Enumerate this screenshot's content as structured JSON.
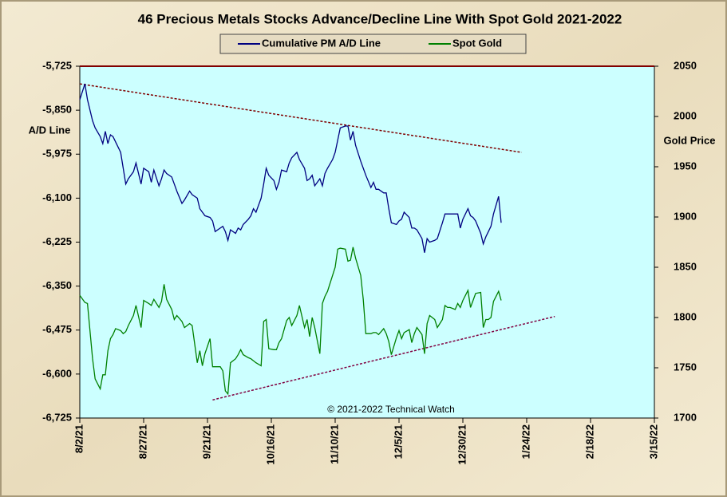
{
  "chart_data": {
    "type": "line",
    "title": "46 Precious Metals Stocks Advance/Decline Line With Spot Gold 2021-2022",
    "y_label": "A/D Line",
    "y2_label": "Gold Price",
    "annotation": "© 2021-2022 Technical Watch",
    "plot_background": "#ccffff",
    "x": [
      "2021-08-02",
      "2021-08-04",
      "2021-08-05",
      "2021-08-07",
      "2021-08-08",
      "2021-08-10",
      "2021-08-11",
      "2021-08-12",
      "2021-08-13",
      "2021-08-14",
      "2021-08-15",
      "2021-08-16",
      "2021-08-18",
      "2021-08-19",
      "2021-08-20",
      "2021-08-21",
      "2021-08-23",
      "2021-08-24",
      "2021-08-26",
      "2021-08-27",
      "2021-08-29",
      "2021-08-30",
      "2021-08-31",
      "2021-09-02",
      "2021-09-03",
      "2021-09-04",
      "2021-09-05",
      "2021-09-07",
      "2021-09-08",
      "2021-09-09",
      "2021-09-11",
      "2021-09-12",
      "2021-09-14",
      "2021-09-15",
      "2021-09-17",
      "2021-09-18",
      "2021-09-19",
      "2021-09-20",
      "2021-09-22",
      "2021-09-23",
      "2021-09-24",
      "2021-09-26",
      "2021-09-27",
      "2021-09-28",
      "2021-09-29",
      "2021-09-30",
      "2021-10-02",
      "2021-10-03",
      "2021-10-04",
      "2021-10-05",
      "2021-10-07",
      "2021-10-08",
      "2021-10-09",
      "2021-10-10",
      "2021-10-12",
      "2021-10-13",
      "2021-10-14",
      "2021-10-15",
      "2021-10-17",
      "2021-10-18",
      "2021-10-19",
      "2021-10-20",
      "2021-10-22",
      "2021-10-23",
      "2021-10-24",
      "2021-10-26",
      "2021-10-27",
      "2021-10-29",
      "2021-10-30",
      "2021-10-31",
      "2021-11-01",
      "2021-11-02",
      "2021-11-04",
      "2021-11-05",
      "2021-11-06",
      "2021-11-07",
      "2021-11-09",
      "2021-11-10",
      "2021-11-11",
      "2021-11-12",
      "2021-11-14",
      "2021-11-15",
      "2021-11-16",
      "2021-11-17",
      "2021-11-18",
      "2021-11-20",
      "2021-11-21",
      "2021-11-22",
      "2021-11-24",
      "2021-11-25",
      "2021-11-26",
      "2021-11-27",
      "2021-11-29",
      "2021-11-30",
      "2021-12-01",
      "2021-12-02",
      "2021-12-04",
      "2021-12-05",
      "2021-12-06",
      "2021-12-07",
      "2021-12-09",
      "2021-12-10",
      "2021-12-11",
      "2021-12-12",
      "2021-12-14",
      "2021-12-15",
      "2021-12-16",
      "2021-12-17",
      "2021-12-19",
      "2021-12-20",
      "2021-12-22",
      "2021-12-23",
      "2021-12-24",
      "2021-12-25",
      "2021-12-27",
      "2021-12-28",
      "2021-12-29",
      "2021-12-30",
      "2022-01-01",
      "2022-01-02",
      "2022-01-03",
      "2022-01-04",
      "2022-01-06",
      "2022-01-07",
      "2022-01-08",
      "2022-01-09",
      "2022-01-10",
      "2022-01-11",
      "2022-01-13",
      "2022-01-14"
    ],
    "series": [
      {
        "name": "Cumulative PM A/D Line",
        "color": "#000080",
        "axis": "y",
        "values": [
          -5820,
          -5775,
          -5820,
          -5880,
          -5900,
          -5925,
          -5945,
          -5910,
          -5945,
          -5920,
          -5925,
          -5940,
          -5970,
          -6015,
          -6060,
          -6045,
          -6025,
          -6000,
          -6060,
          -6015,
          -6025,
          -6055,
          -6020,
          -6065,
          -6045,
          -6020,
          -6030,
          -6040,
          -6060,
          -6080,
          -6115,
          -6105,
          -6080,
          -6090,
          -6100,
          -6130,
          -6140,
          -6150,
          -6155,
          -6165,
          -6195,
          -6185,
          -6180,
          -6195,
          -6220,
          -6190,
          -6200,
          -6185,
          -6190,
          -6175,
          -6160,
          -6150,
          -6130,
          -6140,
          -6100,
          -6060,
          -6015,
          -6035,
          -6050,
          -6075,
          -6055,
          -6020,
          -6025,
          -6000,
          -5985,
          -5970,
          -5990,
          -6015,
          -6050,
          -6045,
          -6035,
          -6065,
          -6045,
          -6065,
          -6030,
          -6015,
          -5990,
          -5970,
          -5935,
          -5900,
          -5895,
          -5895,
          -5935,
          -5910,
          -5950,
          -5995,
          -6015,
          -6035,
          -6070,
          -6055,
          -6075,
          -6075,
          -6085,
          -6085,
          -6130,
          -6170,
          -6175,
          -6165,
          -6160,
          -6140,
          -6155,
          -6185,
          -6185,
          -6190,
          -6215,
          -6255,
          -6215,
          -6225,
          -6220,
          -6215,
          -6170,
          -6145,
          -6145,
          -6145,
          -6145,
          -6145,
          -6185,
          -6160,
          -6130,
          -6150,
          -6155,
          -6165,
          -6200,
          -6230,
          -6210,
          -6195,
          -6180,
          -6145,
          -6095,
          -6170
        ]
      },
      {
        "name": "Spot Gold",
        "color": "#008000",
        "axis": "y2",
        "values": [
          1822,
          1815,
          1814,
          1759,
          1739,
          1729,
          1743,
          1743,
          1767,
          1779,
          1783,
          1789,
          1787,
          1784,
          1786,
          1792,
          1802,
          1812,
          1790,
          1817,
          1814,
          1812,
          1818,
          1810,
          1816,
          1833,
          1818,
          1808,
          1798,
          1802,
          1796,
          1790,
          1794,
          1792,
          1755,
          1767,
          1752,
          1764,
          1779,
          1751,
          1751,
          1751,
          1747,
          1727,
          1724,
          1755,
          1759,
          1763,
          1768,
          1763,
          1760,
          1759,
          1757,
          1755,
          1752,
          1796,
          1798,
          1769,
          1768,
          1768,
          1775,
          1779,
          1797,
          1800,
          1792,
          1802,
          1812,
          1790,
          1798,
          1781,
          1800,
          1790,
          1764,
          1814,
          1821,
          1826,
          1842,
          1850,
          1868,
          1869,
          1868,
          1856,
          1857,
          1870,
          1859,
          1842,
          1818,
          1784,
          1784,
          1785,
          1785,
          1783,
          1789,
          1784,
          1776,
          1763,
          1780,
          1787,
          1779,
          1785,
          1788,
          1775,
          1784,
          1790,
          1783,
          1764,
          1794,
          1802,
          1798,
          1790,
          1798,
          1812,
          1810,
          1810,
          1808,
          1814,
          1810,
          1817,
          1827,
          1810,
          1817,
          1824,
          1825,
          1790,
          1798,
          1798,
          1800,
          1816,
          1826,
          1817
        ]
      }
    ],
    "trendlines": [
      {
        "axis": "y",
        "color": "#800000",
        "x": [
          "2021-08-02",
          "2022-01-22"
        ],
        "values": [
          -5775,
          -5970
        ]
      },
      {
        "axis": "y2",
        "color": "#800040",
        "x": [
          "2021-09-23",
          "2022-02-04"
        ],
        "values": [
          1718,
          1801
        ]
      }
    ],
    "xlim": [
      "2021-08-02",
      "2022-03-15"
    ],
    "xticks": [
      {
        "value": "2021-08-02",
        "label": "8/2/21"
      },
      {
        "value": "2021-08-27",
        "label": "8/27/21"
      },
      {
        "value": "2021-09-21",
        "label": "9/21/21"
      },
      {
        "value": "2021-10-16",
        "label": "10/16/21"
      },
      {
        "value": "2021-11-10",
        "label": "11/10/21"
      },
      {
        "value": "2021-12-05",
        "label": "12/5/21"
      },
      {
        "value": "2021-12-30",
        "label": "12/30/21"
      },
      {
        "value": "2022-01-24",
        "label": "1/24/22"
      },
      {
        "value": "2022-02-18",
        "label": "2/18/22"
      },
      {
        "value": "2022-03-15",
        "label": "3/15/22"
      }
    ],
    "ylim": [
      -6725,
      -5725
    ],
    "yticks": [
      {
        "value": -5725,
        "label": "-5,725"
      },
      {
        "value": -5850,
        "label": "-5,850"
      },
      {
        "value": -5975,
        "label": "-5,975"
      },
      {
        "value": -6100,
        "label": "-6,100"
      },
      {
        "value": -6225,
        "label": "-6,225"
      },
      {
        "value": -6350,
        "label": "-6,350"
      },
      {
        "value": -6475,
        "label": "-6,475"
      },
      {
        "value": -6600,
        "label": "-6,600"
      },
      {
        "value": -6725,
        "label": "-6,725"
      }
    ],
    "y2lim": [
      1700,
      2050
    ],
    "y2ticks": [
      1700,
      1750,
      1800,
      1850,
      1900,
      1950,
      2000,
      2050
    ]
  }
}
